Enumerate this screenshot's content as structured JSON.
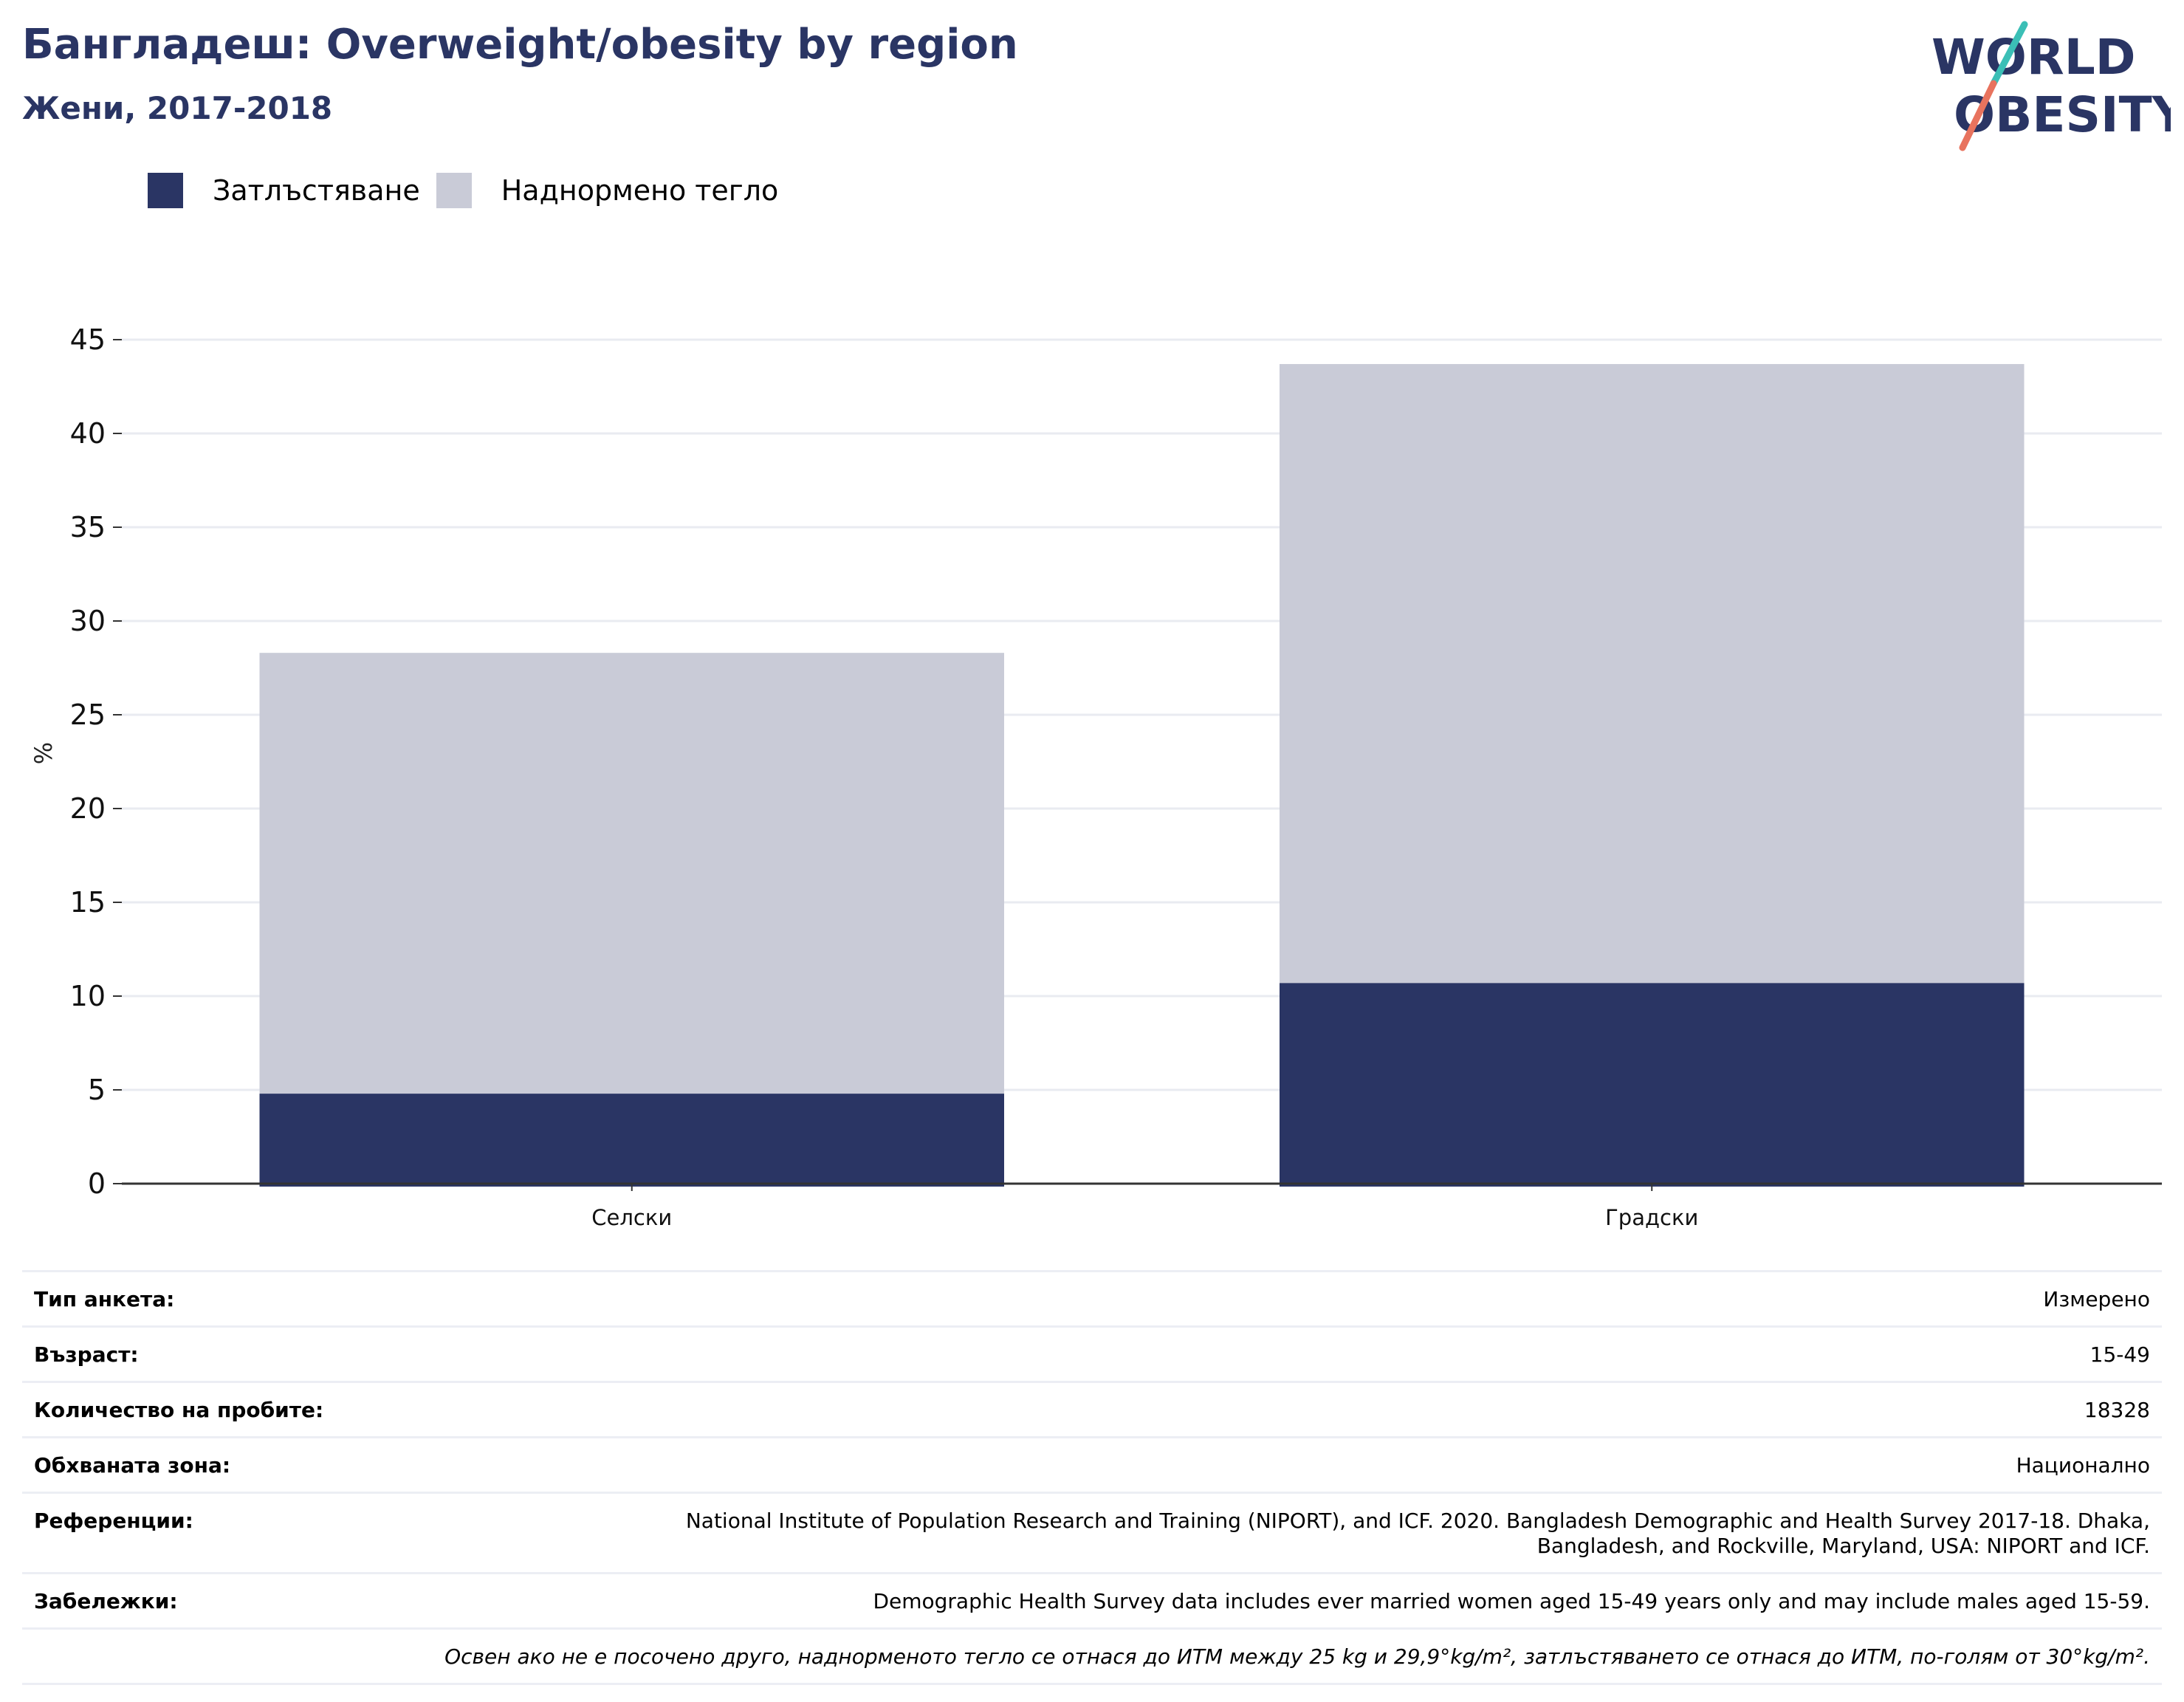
{
  "header": {
    "title": "Бангладеш: Overweight/obesity by region",
    "subtitle": "Жени, 2017-2018"
  },
  "logo": {
    "line1": "WORLD",
    "line2": "OBESITY"
  },
  "colors": {
    "obesity": "#2a3564",
    "overweight": "#c9cbd7",
    "title": "#2a3564",
    "logo_teal": "#3bbfb6",
    "logo_coral": "#e8735e",
    "grid": "#e9ebf1"
  },
  "legend": {
    "items": [
      {
        "label": "Затлъстяване",
        "color": "#2a3564"
      },
      {
        "label": "Наднормено тегло",
        "color": "#c9cbd7"
      }
    ]
  },
  "chart_data": {
    "type": "bar",
    "stacked": true,
    "categories": [
      "Селски",
      "Градски"
    ],
    "series": [
      {
        "name": "Затлъстяване",
        "values": [
          4.8,
          10.7
        ]
      },
      {
        "name": "Наднормено тегло",
        "values": [
          23.5,
          33.0
        ]
      }
    ],
    "xlabel": "",
    "ylabel": "%",
    "ylim": [
      0,
      45
    ],
    "yticks": [
      0,
      5,
      10,
      15,
      20,
      25,
      30,
      35,
      40,
      45
    ],
    "grid": true,
    "legend_position": "top-left"
  },
  "info": {
    "rows": [
      {
        "label": "Тип анкета:",
        "value": "Измерено"
      },
      {
        "label": "Възраст:",
        "value": "15-49"
      },
      {
        "label": "Количество на пробите:",
        "value": "18328"
      },
      {
        "label": "Обхваната зона:",
        "value": "Национално"
      },
      {
        "label": "Референции:",
        "value_lines": [
          "National Institute of Population Research and Training (NIPORT), and ICF. 2020. Bangladesh Demographic and Health Survey 2017-18. Dhaka,",
          "Bangladesh, and Rockville, Maryland, USA: NIPORT and ICF."
        ]
      },
      {
        "label": "Забележки:",
        "value": "Demographic Health Survey data includes ever married women aged 15-49 years only and may include males aged 15-59."
      }
    ],
    "footnote": "Освен ако не е посочено друго, наднорменото тегло се отнася до ИТМ между 25 kg и 29,9°kg/m², затлъстяването се отнася до ИТМ, по-голям от 30°kg/m²."
  }
}
